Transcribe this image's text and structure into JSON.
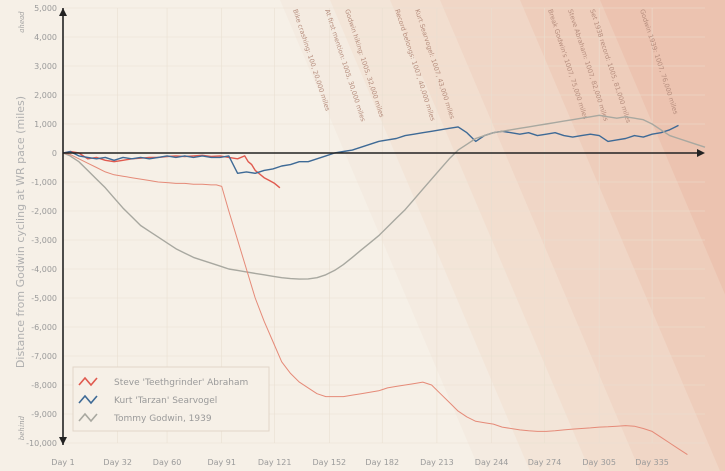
{
  "chart_data": {
    "type": "line",
    "title": "",
    "xlabel": "",
    "ylabel": "Distance from Godwin cycling at WR pace (miles)",
    "side_labels": {
      "top": "ahead",
      "bottom": "behind"
    },
    "xlim": [
      1,
      365
    ],
    "ylim": [
      -10000,
      5000
    ],
    "x_ticks": [
      1,
      32,
      60,
      91,
      121,
      152,
      182,
      213,
      244,
      274,
      305,
      335
    ],
    "x_tick_labels": [
      "Day 1",
      "Day 32",
      "Day 60",
      "Day 91",
      "Day 121",
      "Day 152",
      "Day 182",
      "Day 213",
      "Day 244",
      "Day 274",
      "Day 305",
      "Day 335"
    ],
    "y_ticks": [
      5000,
      4000,
      3000,
      2000,
      1000,
      0,
      -1000,
      -2000,
      -3000,
      -4000,
      -5000,
      -6000,
      -7000,
      -8000,
      -9000,
      -10000
    ],
    "y_tick_labels": [
      "5,000",
      "4,000",
      "3,000",
      "2,000",
      "1,000",
      "0",
      "-1,000",
      "-2,000",
      "-3,000",
      "-4,000",
      "-5,000",
      "-6,000",
      "-7,000",
      "-8,000",
      "-9,000",
      "-10,000"
    ],
    "grid": true,
    "legend_position": "bottom-left",
    "annotations": [
      "Bike crashing: 100, 20,000 miles",
      "At first mention: 1005, 30,000 miles",
      "Godwin hiking: 1005, 32,000 miles",
      "Record belongs: 1007, 40,000 miles",
      "Kurt Searvogel: 1007, 43,000 miles",
      "Break Godwin's 1007, 75,000 miles",
      "Steve Abraham: 1007, 82,000 miles",
      "Set 1938 record: 1005, 81,000 miles",
      "Godwin 1939: 1007, 76,000 miles"
    ],
    "series": [
      {
        "name": "Steve 'Teethgrinder' Abraham",
        "color": "#e05a4f",
        "x": [
          1,
          5,
          10,
          15,
          20,
          25,
          30,
          35,
          40,
          45,
          50,
          55,
          60,
          65,
          70,
          75,
          80,
          85,
          90,
          95,
          100,
          104,
          106,
          108,
          110,
          112,
          115,
          118,
          121,
          124
        ],
        "y": [
          0,
          50,
          0,
          -200,
          -150,
          -250,
          -300,
          -250,
          -200,
          -180,
          -150,
          -150,
          -120,
          -100,
          -120,
          -100,
          -80,
          -120,
          -100,
          -150,
          -200,
          -100,
          -300,
          -400,
          -600,
          -700,
          -850,
          -950,
          -1050,
          -1200
        ]
      },
      {
        "name": "Kurt 'Tarzan' Searvogel",
        "color": "#3e6a96",
        "x": [
          1,
          5,
          10,
          15,
          20,
          25,
          30,
          35,
          40,
          45,
          50,
          55,
          60,
          65,
          70,
          75,
          80,
          85,
          90,
          95,
          100,
          105,
          110,
          115,
          120,
          125,
          130,
          135,
          140,
          145,
          150,
          155,
          160,
          165,
          170,
          175,
          180,
          185,
          190,
          195,
          200,
          205,
          210,
          215,
          220,
          225,
          230,
          235,
          240,
          245,
          250,
          255,
          260,
          265,
          270,
          275,
          280,
          285,
          290,
          295,
          300,
          305,
          310,
          315,
          320,
          325,
          330,
          335,
          340,
          345,
          350
        ],
        "y": [
          0,
          50,
          -100,
          -150,
          -200,
          -150,
          -250,
          -150,
          -200,
          -150,
          -200,
          -150,
          -100,
          -150,
          -100,
          -150,
          -100,
          -150,
          -150,
          -100,
          -700,
          -650,
          -700,
          -600,
          -550,
          -450,
          -400,
          -300,
          -300,
          -200,
          -100,
          0,
          50,
          100,
          200,
          300,
          400,
          450,
          500,
          600,
          650,
          700,
          750,
          800,
          850,
          900,
          700,
          400,
          600,
          700,
          750,
          700,
          650,
          700,
          600,
          650,
          700,
          600,
          550,
          600,
          650,
          600,
          400,
          450,
          500,
          600,
          550,
          650,
          700,
          800,
          950
        ]
      },
      {
        "name": "Tommy Godwin, 1939",
        "color": "#a8a8a0",
        "x": [
          1,
          5,
          10,
          15,
          20,
          25,
          30,
          35,
          40,
          45,
          50,
          55,
          60,
          65,
          70,
          75,
          80,
          85,
          90,
          95,
          100,
          105,
          110,
          115,
          120,
          125,
          130,
          135,
          140,
          145,
          150,
          155,
          160,
          165,
          170,
          175,
          180,
          185,
          190,
          195,
          200,
          205,
          210,
          215,
          220,
          225,
          230,
          235,
          240,
          245,
          250,
          255,
          260,
          265,
          270,
          275,
          280,
          285,
          290,
          295,
          300,
          305,
          310,
          315,
          320,
          325,
          330,
          335,
          340,
          345,
          350,
          355,
          360,
          365
        ],
        "y": [
          0,
          -100,
          -300,
          -600,
          -900,
          -1200,
          -1550,
          -1900,
          -2200,
          -2500,
          -2700,
          -2900,
          -3100,
          -3300,
          -3450,
          -3600,
          -3700,
          -3800,
          -3900,
          -4000,
          -4050,
          -4100,
          -4150,
          -4200,
          -4250,
          -4300,
          -4330,
          -4350,
          -4340,
          -4300,
          -4200,
          -4050,
          -3850,
          -3600,
          -3350,
          -3100,
          -2850,
          -2550,
          -2250,
          -1950,
          -1600,
          -1250,
          -900,
          -550,
          -200,
          100,
          300,
          500,
          600,
          700,
          750,
          800,
          850,
          900,
          950,
          1000,
          1050,
          1100,
          1150,
          1200,
          1250,
          1300,
          1250,
          1200,
          1250,
          1200,
          1150,
          1000,
          800,
          600,
          500,
          400,
          300,
          200
        ]
      },
      {
        "name": "",
        "color": "#e58a78",
        "x": [
          1,
          5,
          10,
          15,
          20,
          25,
          30,
          35,
          40,
          45,
          50,
          55,
          60,
          65,
          70,
          75,
          80,
          85,
          88,
          91,
          95,
          100,
          105,
          110,
          115,
          120,
          125,
          130,
          135,
          140,
          145,
          150,
          155,
          160,
          165,
          170,
          175,
          180,
          185,
          190,
          195,
          200,
          205,
          210,
          215,
          220,
          225,
          230,
          235,
          240,
          245,
          250,
          255,
          260,
          265,
          270,
          275,
          280,
          285,
          290,
          295,
          300,
          305,
          310,
          315,
          320,
          325,
          330,
          335,
          340,
          345,
          350,
          355
        ],
        "y": [
          0,
          -50,
          -200,
          -350,
          -500,
          -650,
          -750,
          -800,
          -850,
          -900,
          -950,
          -1000,
          -1020,
          -1050,
          -1050,
          -1080,
          -1080,
          -1100,
          -1100,
          -1150,
          -2000,
          -3000,
          -4000,
          -5000,
          -5800,
          -6500,
          -7200,
          -7600,
          -7900,
          -8100,
          -8300,
          -8400,
          -8400,
          -8400,
          -8350,
          -8300,
          -8250,
          -8200,
          -8100,
          -8050,
          -8000,
          -7950,
          -7900,
          -8000,
          -8300,
          -8600,
          -8900,
          -9100,
          -9250,
          -9300,
          -9350,
          -9450,
          -9500,
          -9550,
          -9580,
          -9600,
          -9600,
          -9580,
          -9550,
          -9520,
          -9500,
          -9480,
          -9450,
          -9440,
          -9420,
          -9400,
          -9420,
          -9500,
          -9600,
          -9800,
          -10000,
          -10200,
          -10400
        ]
      }
    ]
  }
}
